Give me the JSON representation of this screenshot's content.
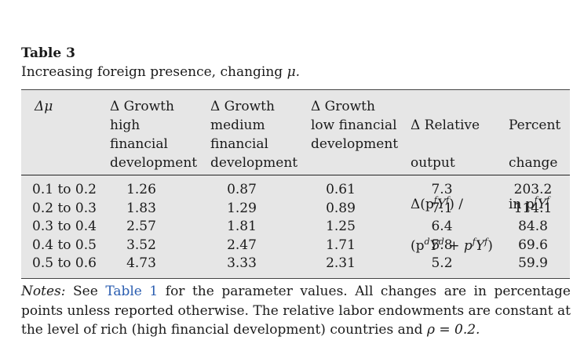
{
  "table": {
    "label": "Table 3",
    "caption_text": "Increasing foreign presence, changing ",
    "caption_symbol": "μ.",
    "headers": {
      "col0": "Δμ",
      "col1": "Δ Growth\nhigh\nfinancial\ndevelopment",
      "col2": "Δ Growth\nmedium\nfinancial\ndevelopment",
      "col3": "Δ Growth\nlow financial\ndevelopment",
      "col4_line1": "Δ Relative",
      "col4_line2": "output",
      "col4_formula1": "Δ(p",
      "col4_formula2": "(p",
      "col5_line1": "Percent",
      "col5_line2": "change",
      "col5_line3": "in p"
    },
    "rows": [
      {
        "range": "0.1 to 0.2",
        "high": "1.26",
        "medium": "0.87",
        "low": "0.61",
        "relative": "7.3",
        "percent": "203.2"
      },
      {
        "range": "0.2 to 0.3",
        "high": "1.83",
        "medium": "1.29",
        "low": "0.89",
        "relative": "7.1",
        "percent": "114.1"
      },
      {
        "range": "0.3 to 0.4",
        "high": "2.57",
        "medium": "1.81",
        "low": "1.25",
        "relative": "6.4",
        "percent": "84.8"
      },
      {
        "range": "0.4 to 0.5",
        "high": "3.52",
        "medium": "2.47",
        "low": "1.71",
        "relative": "5.8",
        "percent": "69.6"
      },
      {
        "range": "0.5 to 0.6",
        "high": "4.73",
        "medium": "3.33",
        "low": "2.31",
        "relative": "5.2",
        "percent": "59.9"
      }
    ]
  },
  "notes": {
    "label": "Notes:",
    "text_before_link": " See ",
    "link_text": "Table 1",
    "text_after_link": " for the parameter values. All changes are in percentage points unless reported otherwise. The relative labor endowments are constant at the level of rich (high financial development) countries and ",
    "rho_expr": "ρ = 0.2."
  }
}
